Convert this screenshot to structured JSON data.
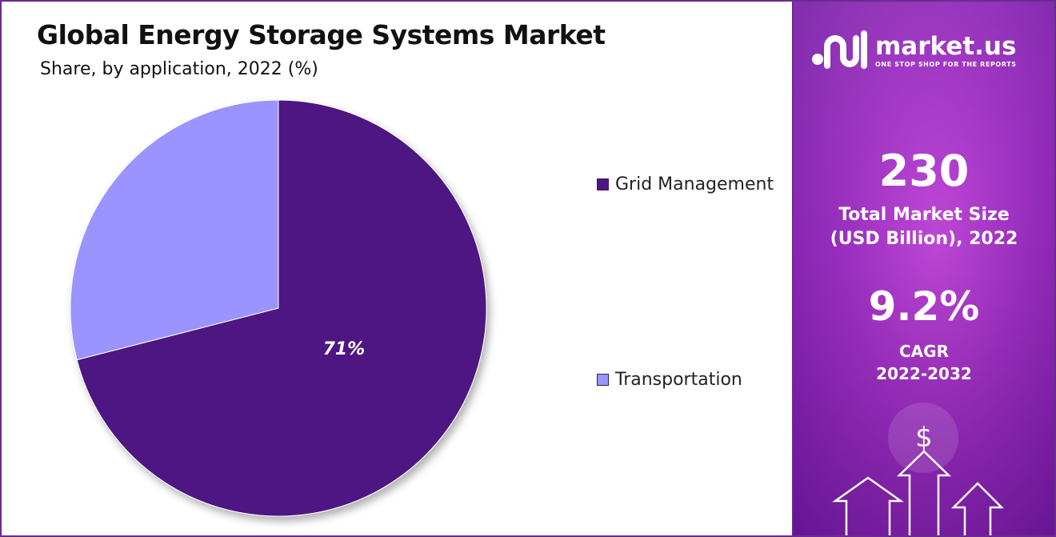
{
  "chart_data": {
    "type": "pie",
    "title": "Global Energy Storage Systems Market",
    "subtitle": "Share, by application, 2022 (%)",
    "categories": [
      "Grid Management",
      "Transportation"
    ],
    "values": [
      71,
      29
    ],
    "data_labels": [
      "71%",
      ""
    ],
    "colors": [
      "#4e1582",
      "#9b93ff"
    ],
    "legend_position": "right"
  },
  "legend": {
    "items": [
      {
        "label": "Grid Management",
        "color": "#4e1582"
      },
      {
        "label": "Transportation",
        "color": "#9b93ff"
      }
    ]
  },
  "sidebar": {
    "brand": "market.us",
    "tagline": "ONE STOP SHOP FOR THE REPORTS",
    "market_size_value": "230",
    "market_size_label_line1": "Total Market Size",
    "market_size_label_line2": "(USD Billion), 2022",
    "cagr_value": "9.2%",
    "cagr_label_line1": "CAGR",
    "cagr_label_line2": "2022-2032",
    "currency_symbol": "$",
    "background_color": "#9c2fc0"
  }
}
